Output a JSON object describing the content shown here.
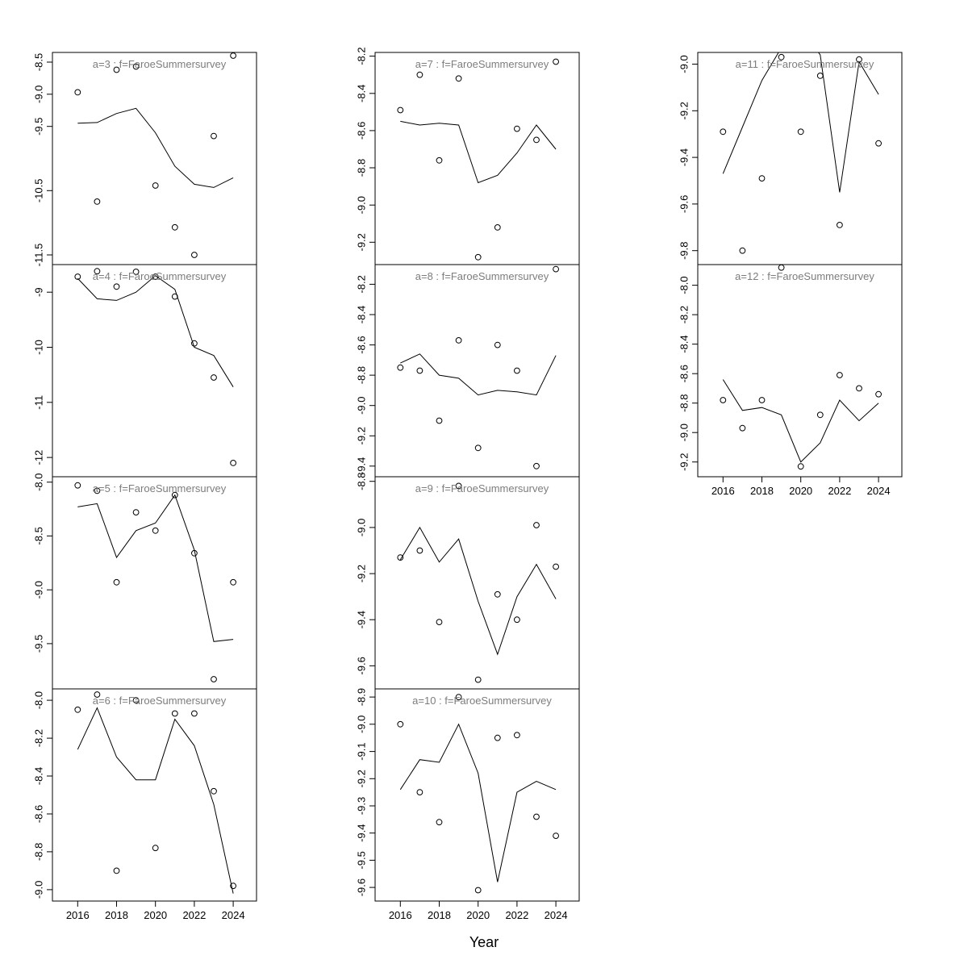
{
  "xlabel": "Year",
  "chart_data": {
    "type": "scatter",
    "description": "Lattice of observed (circles) vs fitted (line) log-index values by age for FaroeSummersurvey, 2016-2024",
    "x": [
      2016,
      2017,
      2018,
      2019,
      2020,
      2021,
      2022,
      2023,
      2024
    ],
    "xticks": [
      "2016",
      "2018",
      "2020",
      "2022",
      "2024"
    ],
    "xlim": [
      2014.7,
      2025.2
    ],
    "xlabel": "Year",
    "grid": false,
    "legend": "none",
    "panels": [
      {
        "id": "a3",
        "title": "a=3 : f=FaroeSummersurvey",
        "col": 0,
        "row": 0,
        "xaxis": false,
        "ylim": [
          -11.65,
          -8.35
        ],
        "yticks": [
          "-8.5",
          "-9.0",
          "-9.5",
          "-10.5",
          "-11.5"
        ],
        "points": [
          -8.97,
          -10.67,
          -8.62,
          -8.57,
          -10.42,
          -11.07,
          -11.5,
          -9.65,
          -8.4
        ],
        "line": [
          -9.45,
          -9.44,
          -9.3,
          -9.22,
          -9.6,
          -10.12,
          -10.4,
          -10.45,
          -10.3
        ]
      },
      {
        "id": "a4",
        "title": "a=4 : f=FaroeSummersurvey",
        "col": 0,
        "row": 1,
        "xaxis": false,
        "ylim": [
          -12.35,
          -8.5
        ],
        "yticks": [
          "-9",
          "-10",
          "-11",
          "-12"
        ],
        "points": [
          -8.72,
          -8.62,
          -8.9,
          -8.63,
          -8.72,
          -9.08,
          -9.93,
          -10.55,
          -12.1
        ],
        "line": [
          -8.75,
          -9.12,
          -9.15,
          -9.0,
          -8.7,
          -8.95,
          -10.0,
          -10.15,
          -10.72
        ]
      },
      {
        "id": "a5",
        "title": "a=5 : f=FaroeSummersurvey",
        "col": 0,
        "row": 2,
        "xaxis": false,
        "ylim": [
          -9.92,
          -7.95
        ],
        "yticks": [
          "-8.0",
          "-8.5",
          "-9.0",
          "-9.5"
        ],
        "points": [
          -8.03,
          -8.08,
          -8.93,
          -8.28,
          -8.45,
          -8.12,
          -8.66,
          -9.83,
          -8.93
        ],
        "line": [
          -8.23,
          -8.2,
          -8.7,
          -8.45,
          -8.38,
          -8.12,
          -8.63,
          -9.48,
          -9.46
        ]
      },
      {
        "id": "a6",
        "title": "a=6 : f=FaroeSummersurvey",
        "col": 0,
        "row": 3,
        "xaxis": true,
        "ylim": [
          -9.06,
          -7.94
        ],
        "yticks": [
          "-8.0",
          "-8.2",
          "-8.4",
          "-8.6",
          "-8.8",
          "-9.0"
        ],
        "points": [
          -8.05,
          -7.97,
          -8.9,
          -8.0,
          -8.78,
          -8.07,
          -8.07,
          -8.48,
          -8.98
        ],
        "line": [
          -8.26,
          -8.04,
          -8.3,
          -8.42,
          -8.42,
          -8.1,
          -8.24,
          -8.55,
          -9.02
        ]
      },
      {
        "id": "a7",
        "title": "a=7 : f=FaroeSummersurvey",
        "col": 1,
        "row": 0,
        "xaxis": false,
        "ylim": [
          -9.32,
          -8.18
        ],
        "yticks": [
          "-8.2",
          "-8.4",
          "-8.6",
          "-8.8",
          "-9.0",
          "-9.2"
        ],
        "points": [
          -8.49,
          -8.3,
          -8.76,
          -8.32,
          -9.28,
          -9.12,
          -8.59,
          -8.65,
          -8.23
        ],
        "line": [
          -8.55,
          -8.57,
          -8.56,
          -8.57,
          -8.88,
          -8.84,
          -8.72,
          -8.57,
          -8.7
        ]
      },
      {
        "id": "a8",
        "title": "a=8 : f=FaroeSummersurvey",
        "col": 1,
        "row": 1,
        "xaxis": false,
        "ylim": [
          -9.47,
          -8.07
        ],
        "yticks": [
          "-8.2",
          "-8.4",
          "-8.6",
          "-8.8",
          "-9.0",
          "-9.2",
          "-9.4"
        ],
        "points": [
          -8.75,
          -8.77,
          -9.1,
          -8.57,
          -9.28,
          -8.6,
          -8.77,
          -9.4,
          -8.1
        ],
        "line": [
          -8.72,
          -8.66,
          -8.8,
          -8.82,
          -8.93,
          -8.9,
          -8.91,
          -8.93,
          -8.67
        ]
      },
      {
        "id": "a9",
        "title": "a=9 : f=FaroeSummersurvey",
        "col": 1,
        "row": 2,
        "xaxis": false,
        "ylim": [
          -9.7,
          -8.78
        ],
        "yticks": [
          "-8.8",
          "-9.0",
          "-9.2",
          "-9.4",
          "-9.6"
        ],
        "points": [
          -9.13,
          -9.1,
          -9.41,
          -8.82,
          -9.66,
          -9.29,
          -9.4,
          -8.99,
          -9.17
        ],
        "line": [
          -9.14,
          -9.0,
          -9.15,
          -9.05,
          -9.32,
          -9.55,
          -9.3,
          -9.16,
          -9.31
        ]
      },
      {
        "id": "a10",
        "title": "a=10 : f=FaroeSummersurvey",
        "col": 1,
        "row": 3,
        "xaxis": true,
        "ylim": [
          -9.65,
          -8.87
        ],
        "yticks": [
          "-8.9",
          "-9.0",
          "-9.1",
          "-9.2",
          "-9.3",
          "-9.4",
          "-9.5",
          "-9.6"
        ],
        "points": [
          -9.0,
          -9.25,
          -9.36,
          -8.9,
          -9.61,
          -9.05,
          -9.04,
          -9.34,
          -9.41
        ],
        "line": [
          -9.24,
          -9.13,
          -9.14,
          -9.0,
          -9.18,
          -9.58,
          -9.25,
          -9.21,
          -9.24
        ]
      },
      {
        "id": "a11",
        "title": "a=11 : f=FaroeSummersurvey",
        "col": 2,
        "row": 0,
        "xaxis": false,
        "ylim": [
          -9.86,
          -8.95
        ],
        "yticks": [
          "-9.0",
          "-9.2",
          "-9.4",
          "-9.6",
          "-9.8"
        ],
        "points": [
          -9.29,
          -9.8,
          -9.49,
          -8.97,
          -9.29,
          -9.05,
          -9.69,
          -8.98,
          -9.34
        ],
        "line": [
          -9.47,
          -9.27,
          -9.07,
          -8.93,
          -8.85,
          -8.96,
          -9.55,
          -8.99,
          -9.13
        ]
      },
      {
        "id": "a12",
        "title": "a=12 : f=FaroeSummersurvey",
        "col": 2,
        "row": 1,
        "xaxis": true,
        "ylim": [
          -9.3,
          -7.86
        ],
        "yticks": [
          "-8.0",
          "-8.2",
          "-8.4",
          "-8.6",
          "-8.8",
          "-9.0",
          "-9.2"
        ],
        "points": [
          -8.78,
          -8.97,
          -8.78,
          -7.88,
          -9.23,
          -8.88,
          -8.61,
          -8.7,
          -8.74
        ],
        "line": [
          -8.64,
          -8.85,
          -8.83,
          -8.88,
          -9.2,
          -9.07,
          -8.78,
          -8.92,
          -8.8
        ]
      }
    ]
  }
}
